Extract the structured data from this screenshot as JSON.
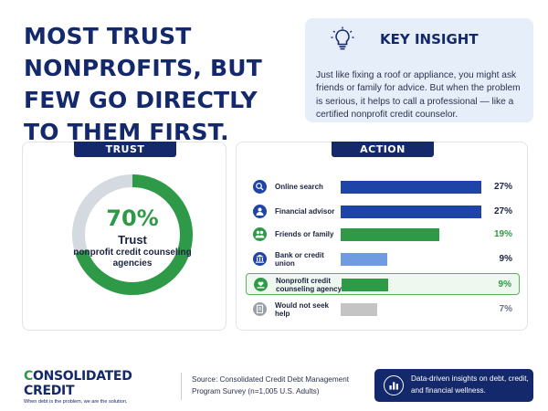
{
  "headline": "MOST TRUST NONPROFITS, BUT FEW GO DIRECTLY TO THEM FIRST.",
  "insight": {
    "title": "KEY INSIGHT",
    "icon": "lightbulb-icon",
    "body": "Just like fixing a roof or appliance, you might ask friends or family for advice. But when the problem is serious, it helps to call a professional — like a certified nonprofit credit counselor."
  },
  "trust": {
    "tab": "TRUST",
    "percent_label": "70%",
    "word": "Trust",
    "sub": "nonprofit credit counseling agencies"
  },
  "action": {
    "tab": "ACTION",
    "rows": [
      {
        "label": "Online search",
        "value_label": "27%",
        "icon": "search-icon"
      },
      {
        "label": "Financial advisor",
        "value_label": "27%",
        "icon": "advisor-icon"
      },
      {
        "label": "Friends or family",
        "value_label": "19%",
        "icon": "people-icon"
      },
      {
        "label": "Bank or credit union",
        "value_label": "9%",
        "icon": "bank-icon"
      },
      {
        "label": "Nonprofit credit counseling agency",
        "value_label": "9%",
        "icon": "heart-hand-icon"
      },
      {
        "label": "Would not seek help",
        "value_label": "7%",
        "icon": "document-icon"
      }
    ]
  },
  "footer": {
    "logo_part1": "C",
    "logo_part2": "ONSOLIDATED CREDIT",
    "logo_tagline": "When debt is the problem, we are the solution.",
    "source": "Source: Consolidated Credit Debt Management Program Survey (n=1,005 U.S. Adults)",
    "badge_text": "Data-driven insights on debt, credit, and financial wellness.",
    "badge_icon": "bar-chart-icon"
  },
  "colors": {
    "navy": "#13296b",
    "blue": "#1e44a8",
    "green": "#2e9a47",
    "light_blue": "#6f9be0",
    "gray": "#c4c4c4",
    "donut_track": "#d5d9e0"
  },
  "chart_data": [
    {
      "type": "pie",
      "title": "TRUST",
      "values": [
        70,
        30
      ],
      "center_label": "70%"
    },
    {
      "type": "bar",
      "title": "ACTION",
      "orientation": "horizontal",
      "categories": [
        "Online search",
        "Financial advisor",
        "Friends or family",
        "Bank or credit union",
        "Nonprofit credit counseling agency",
        "Would not seek help"
      ],
      "values": [
        27,
        27,
        19,
        9,
        9,
        7
      ],
      "bar_colors": [
        "#1e44a8",
        "#1e44a8",
        "#2e9a47",
        "#6f9be0",
        "#2e9a47",
        "#c4c4c4"
      ],
      "value_colors": [
        "#1a2340",
        "#1a2340",
        "#2e9a47",
        "#1a2340",
        "#2e9a47",
        "#6b7280"
      ],
      "highlight_index": 4,
      "xlim": [
        0,
        27
      ]
    }
  ]
}
